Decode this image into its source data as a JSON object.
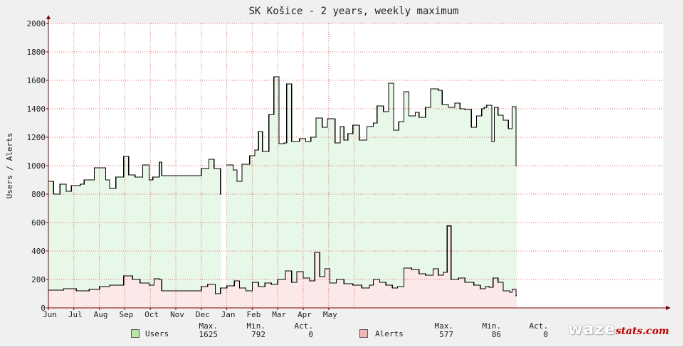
{
  "chart_data": {
    "type": "area",
    "title": "SK Košice - 2 years, weekly maximum",
    "ylabel": "Users / Alerts",
    "ylim": [
      0,
      2000
    ],
    "yticks": [
      0,
      200,
      400,
      600,
      800,
      1000,
      1200,
      1400,
      1600,
      1800,
      2000
    ],
    "xticks": [
      "Jun",
      "Jul",
      "Aug",
      "Sep",
      "Oct",
      "Nov",
      "Dec",
      "Jan",
      "Feb",
      "Mar",
      "Apr",
      "May"
    ],
    "grid": true,
    "colors": {
      "users_fill": "#e8f8e8",
      "alerts_fill": "#fbe8e8",
      "line": "#000000",
      "grid": "#e86b6b",
      "swatch_users": "#b8e8a0",
      "swatch_alerts": "#f4b4b4"
    },
    "series": [
      {
        "name": "Users",
        "points": [
          [
            0,
            890
          ],
          [
            0.2,
            800
          ],
          [
            0.45,
            870
          ],
          [
            0.7,
            820
          ],
          [
            0.9,
            860
          ],
          [
            1.25,
            870
          ],
          [
            1.4,
            900
          ],
          [
            1.8,
            985
          ],
          [
            2.25,
            900
          ],
          [
            2.4,
            840
          ],
          [
            2.65,
            920
          ],
          [
            2.95,
            1065
          ],
          [
            3.15,
            935
          ],
          [
            3.4,
            920
          ],
          [
            3.7,
            1005
          ],
          [
            3.95,
            900
          ],
          [
            4.1,
            920
          ],
          [
            4.35,
            1025
          ],
          [
            4.45,
            930
          ],
          [
            6.0,
            980
          ],
          [
            6.3,
            1045
          ],
          [
            6.5,
            980
          ],
          [
            6.75,
            800
          ],
          [
            6.85,
            null
          ],
          [
            7.0,
            1005
          ],
          [
            7.25,
            970
          ],
          [
            7.4,
            890
          ],
          [
            7.6,
            1010
          ],
          [
            7.9,
            1070
          ],
          [
            8.1,
            1110
          ],
          [
            8.25,
            1240
          ],
          [
            8.4,
            1100
          ],
          [
            8.65,
            1360
          ],
          [
            8.85,
            1625
          ],
          [
            9.05,
            1155
          ],
          [
            9.25,
            1160
          ],
          [
            9.35,
            1575
          ],
          [
            9.55,
            1170
          ],
          [
            9.85,
            1190
          ],
          [
            10.1,
            1170
          ],
          [
            10.3,
            1200
          ],
          [
            10.5,
            1335
          ],
          [
            10.75,
            1270
          ],
          [
            10.95,
            1330
          ],
          [
            11.25,
            1160
          ],
          [
            11.45,
            1275
          ],
          [
            11.6,
            1180
          ],
          [
            11.75,
            1225
          ],
          [
            11.95,
            1285
          ],
          [
            12.2,
            1180
          ],
          [
            12.5,
            1275
          ],
          [
            12.75,
            1300
          ],
          [
            12.9,
            1420
          ],
          [
            13.15,
            1380
          ],
          [
            13.35,
            1580
          ],
          [
            13.55,
            1250
          ],
          [
            13.75,
            1310
          ],
          [
            13.95,
            1520
          ],
          [
            14.15,
            1350
          ],
          [
            14.4,
            1375
          ],
          [
            14.55,
            1340
          ],
          [
            14.8,
            1410
          ],
          [
            15.0,
            1540
          ],
          [
            15.3,
            1530
          ],
          [
            15.45,
            1430
          ],
          [
            15.7,
            1410
          ],
          [
            15.95,
            1440
          ],
          [
            16.15,
            1400
          ],
          [
            16.35,
            1395
          ],
          [
            16.6,
            1270
          ],
          [
            16.8,
            1350
          ],
          [
            17.0,
            1400
          ],
          [
            17.1,
            1410
          ],
          [
            17.2,
            1425
          ],
          [
            17.4,
            1170
          ],
          [
            17.5,
            1410
          ],
          [
            17.65,
            1355
          ],
          [
            17.85,
            1320
          ],
          [
            18.05,
            1260
          ],
          [
            18.2,
            1415
          ],
          [
            18.35,
            1000
          ]
        ]
      },
      {
        "name": "Alerts",
        "points": [
          [
            0,
            125
          ],
          [
            0.6,
            135
          ],
          [
            1.1,
            120
          ],
          [
            1.6,
            130
          ],
          [
            2.0,
            150
          ],
          [
            2.4,
            160
          ],
          [
            2.95,
            225
          ],
          [
            3.3,
            200
          ],
          [
            3.6,
            175
          ],
          [
            3.95,
            160
          ],
          [
            4.15,
            205
          ],
          [
            4.35,
            200
          ],
          [
            4.45,
            120
          ],
          [
            6.0,
            150
          ],
          [
            6.25,
            165
          ],
          [
            6.55,
            100
          ],
          [
            6.75,
            140
          ],
          [
            7.0,
            155
          ],
          [
            7.3,
            190
          ],
          [
            7.5,
            140
          ],
          [
            7.75,
            120
          ],
          [
            8.0,
            180
          ],
          [
            8.25,
            150
          ],
          [
            8.5,
            175
          ],
          [
            8.75,
            165
          ],
          [
            9.0,
            200
          ],
          [
            9.3,
            260
          ],
          [
            9.55,
            180
          ],
          [
            9.75,
            255
          ],
          [
            10.0,
            210
          ],
          [
            10.25,
            190
          ],
          [
            10.45,
            390
          ],
          [
            10.65,
            220
          ],
          [
            10.85,
            275
          ],
          [
            11.05,
            175
          ],
          [
            11.3,
            200
          ],
          [
            11.6,
            170
          ],
          [
            11.95,
            160
          ],
          [
            12.3,
            140
          ],
          [
            12.6,
            160
          ],
          [
            12.75,
            200
          ],
          [
            13.0,
            180
          ],
          [
            13.25,
            160
          ],
          [
            13.5,
            140
          ],
          [
            13.7,
            150
          ],
          [
            13.95,
            280
          ],
          [
            14.25,
            270
          ],
          [
            14.55,
            240
          ],
          [
            14.8,
            230
          ],
          [
            15.1,
            275
          ],
          [
            15.3,
            230
          ],
          [
            15.5,
            250
          ],
          [
            15.65,
            577
          ],
          [
            15.8,
            200
          ],
          [
            16.1,
            210
          ],
          [
            16.35,
            180
          ],
          [
            16.7,
            160
          ],
          [
            16.95,
            135
          ],
          [
            17.15,
            150
          ],
          [
            17.3,
            145
          ],
          [
            17.45,
            210
          ],
          [
            17.65,
            180
          ],
          [
            17.85,
            120
          ],
          [
            18.1,
            110
          ],
          [
            18.2,
            130
          ],
          [
            18.35,
            86
          ]
        ]
      }
    ],
    "legend": [
      {
        "name": "Users",
        "max": "1625",
        "min": "792",
        "act": "0"
      },
      {
        "name": "Alerts",
        "max": "577",
        "min": "86",
        "act": "0"
      }
    ],
    "legend_headers": {
      "max": "Max.",
      "min": "Min.",
      "act": "Act."
    }
  },
  "watermark": {
    "main": "waze",
    "sub": "stats.com"
  }
}
